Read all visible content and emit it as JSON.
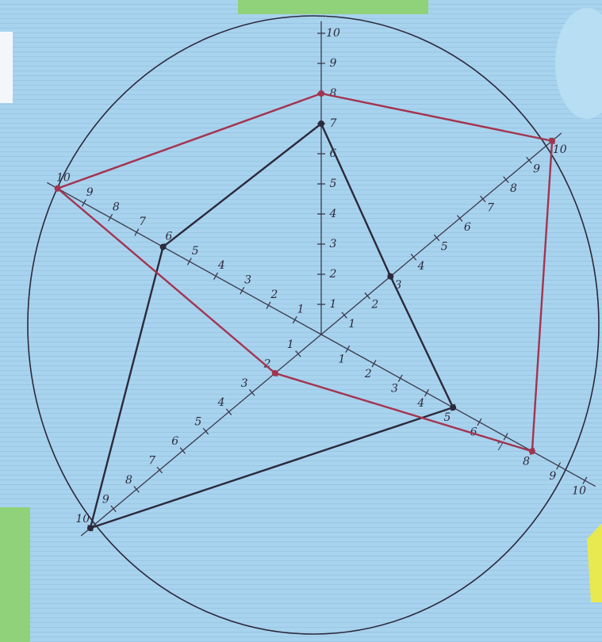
{
  "chart_data": {
    "type": "radar",
    "rlim": [
      0,
      10
    ],
    "rticks": [
      1,
      2,
      3,
      4,
      5,
      6,
      7,
      8,
      9,
      10
    ],
    "series": [
      {
        "color": "#2b2a3c",
        "values": [
          7,
          3,
          5,
          10,
          6
        ]
      },
      {
        "color": "#a3344f",
        "values": [
          8,
          10,
          8,
          2,
          10
        ]
      }
    ]
  }
}
